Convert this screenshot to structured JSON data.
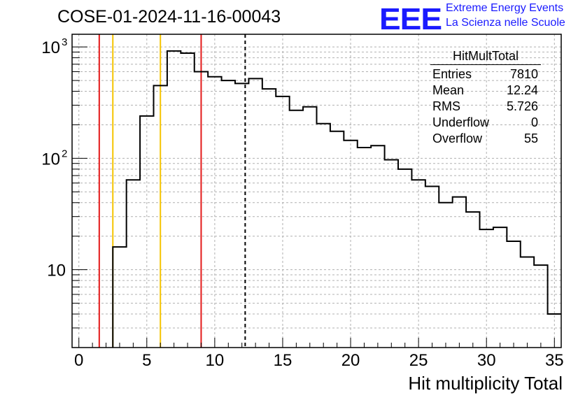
{
  "title": "COSE-01-2024-11-16-00043",
  "logo": {
    "text": "EEE",
    "line1": "Extreme Energy Events",
    "line2": "La Scienza nelle Scuole",
    "color": "#1a1aff"
  },
  "stats": {
    "name": "HitMultTotal",
    "rows": [
      {
        "label": "Entries",
        "value": "7810"
      },
      {
        "label": "Mean",
        "value": "12.24"
      },
      {
        "label": "RMS",
        "value": "5.726"
      },
      {
        "label": "Underflow",
        "value": "0"
      },
      {
        "label": "Overflow",
        "value": "55"
      }
    ]
  },
  "chart_data": {
    "type": "histogram",
    "xlabel": "Hit multiplicity Total",
    "ylabel": "",
    "xlim": [
      -0.5,
      35.5
    ],
    "ylim": [
      2,
      1300
    ],
    "yscale": "log",
    "grid": true,
    "x_ticks": [
      0,
      5,
      10,
      15,
      20,
      25,
      30,
      35
    ],
    "y_tick_labels": [
      {
        "value": 10,
        "label": "10"
      },
      {
        "value": 100,
        "label": "10",
        "exp": "2"
      },
      {
        "value": 1000,
        "label": "10",
        "exp": "3"
      }
    ],
    "bin_width": 1,
    "bins_low_edges": [
      2.5,
      3.5,
      4.5,
      5.5,
      6.5,
      7.5,
      8.5,
      9.5,
      10.5,
      11.5,
      12.5,
      13.5,
      14.5,
      15.5,
      16.5,
      17.5,
      18.5,
      19.5,
      20.5,
      21.5,
      22.5,
      23.5,
      24.5,
      25.5,
      26.5,
      27.5,
      28.5,
      29.5,
      30.5,
      31.5,
      32.5,
      33.5,
      34.5
    ],
    "counts": [
      16,
      64,
      240,
      450,
      920,
      880,
      600,
      540,
      500,
      470,
      520,
      420,
      360,
      270,
      290,
      205,
      175,
      145,
      125,
      130,
      97,
      80,
      64,
      56,
      40,
      45,
      33,
      23,
      24,
      18,
      13,
      11,
      4
    ],
    "vertical_lines": [
      {
        "x": 1.5,
        "color": "#e41a1a",
        "style": "solid"
      },
      {
        "x": 2.5,
        "color": "#f5c400",
        "style": "solid"
      },
      {
        "x": 6,
        "color": "#f5c400",
        "style": "solid"
      },
      {
        "x": 9,
        "color": "#e41a1a",
        "style": "solid"
      },
      {
        "x": 12.24,
        "color": "#000000",
        "style": "dashed"
      }
    ]
  }
}
